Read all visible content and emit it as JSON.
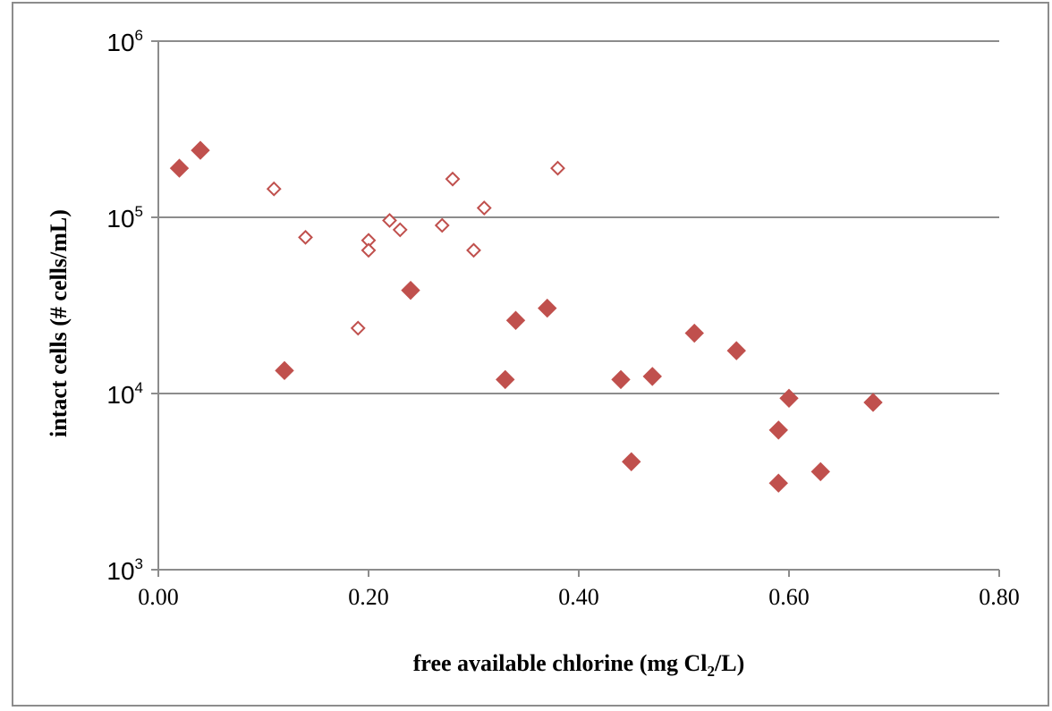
{
  "chart_data": {
    "type": "scatter",
    "title": "",
    "xlabel": "free available  chlorine (mg Cl2/L)",
    "xlabel_parts": {
      "before": "free available  chlorine (mg Cl",
      "sub": "2",
      "after": "/L)"
    },
    "ylabel": "intact cells (# cells/mL)",
    "xlim": [
      0,
      0.8
    ],
    "ylim": [
      1000,
      1000000
    ],
    "y_scale": "log",
    "grid": "horizontal",
    "legend": "none",
    "x_ticks": [
      "0.00",
      "0.20",
      "0.40",
      "0.60",
      "0.80"
    ],
    "x_tick_values": [
      0,
      0.2,
      0.4,
      0.6,
      0.8
    ],
    "y_ticks": [
      {
        "base": "10",
        "exp": "3"
      },
      {
        "base": "10",
        "exp": "4"
      },
      {
        "base": "10",
        "exp": "5"
      },
      {
        "base": "10",
        "exp": "6"
      }
    ],
    "y_tick_values": [
      1000,
      10000,
      100000,
      1000000
    ],
    "colors": {
      "marker": "#c0504d",
      "gridline": "#8c8c8c",
      "axis": "#8c8c8c"
    },
    "series": [
      {
        "marker": "filled-diamond",
        "points": [
          [
            0.02,
            190000
          ],
          [
            0.04,
            240000
          ],
          [
            0.12,
            13500
          ],
          [
            0.24,
            38500
          ],
          [
            0.33,
            12000
          ],
          [
            0.34,
            26000
          ],
          [
            0.37,
            30500
          ],
          [
            0.44,
            12000
          ],
          [
            0.45,
            4100
          ],
          [
            0.47,
            12500
          ],
          [
            0.51,
            22000
          ],
          [
            0.55,
            17500
          ],
          [
            0.59,
            6200
          ],
          [
            0.59,
            3100
          ],
          [
            0.6,
            9400
          ],
          [
            0.63,
            3600
          ],
          [
            0.68,
            8900
          ]
        ]
      },
      {
        "marker": "hollow-diamond",
        "points": [
          [
            0.11,
            145000
          ],
          [
            0.14,
            77000
          ],
          [
            0.19,
            23500
          ],
          [
            0.2,
            74000
          ],
          [
            0.2,
            65000
          ],
          [
            0.22,
            96000
          ],
          [
            0.23,
            85000
          ],
          [
            0.27,
            90000
          ],
          [
            0.28,
            165000
          ],
          [
            0.3,
            65000
          ],
          [
            0.31,
            113000
          ],
          [
            0.38,
            190000
          ]
        ]
      }
    ]
  }
}
